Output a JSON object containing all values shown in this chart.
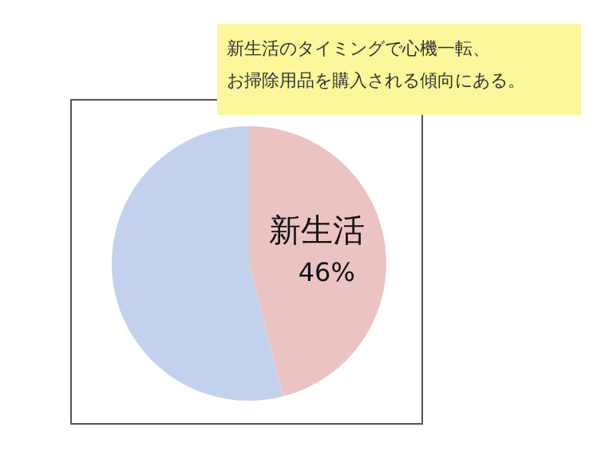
{
  "chart_data": {
    "type": "pie",
    "categories": [
      "新生活",
      null
    ],
    "values": [
      46,
      54
    ],
    "colors": [
      "#ebc3c3",
      "#c3d2ec"
    ],
    "value_labels": [
      "46%",
      null
    ],
    "annotations": [
      "新生活のタイミングで心機一転、",
      "お掃除用品を購入される傾向にある。"
    ]
  }
}
